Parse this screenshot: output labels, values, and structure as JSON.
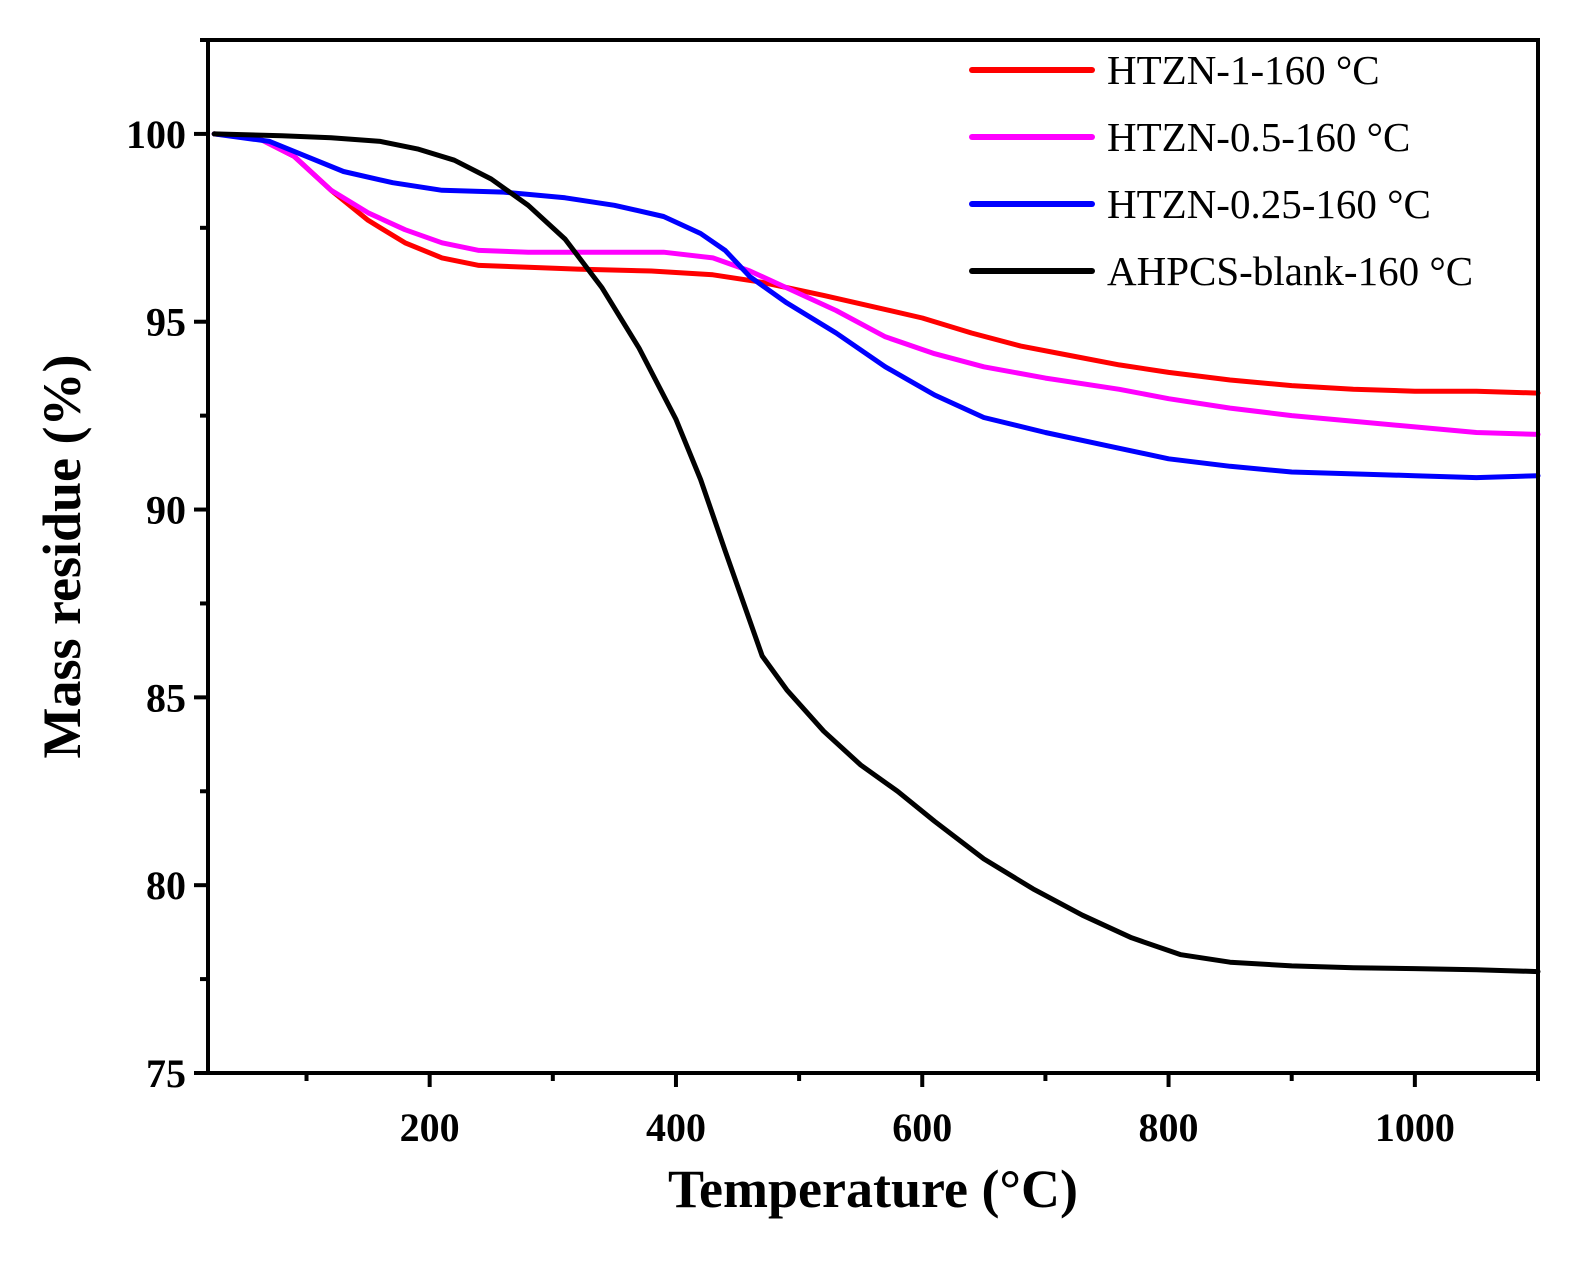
{
  "chart_data": {
    "type": "line",
    "title": "",
    "xlabel": "Temperature (°C)",
    "ylabel": "Mass residue (%)",
    "xlim": [
      20,
      1100
    ],
    "ylim": [
      75,
      102.5
    ],
    "x_ticks": [
      200,
      400,
      600,
      800,
      1000
    ],
    "y_ticks": [
      75,
      80,
      85,
      90,
      95,
      100
    ],
    "x_tick_labels": [
      "200",
      "400",
      "600",
      "800",
      "1000"
    ],
    "y_tick_labels": [
      "75",
      "80",
      "85",
      "90",
      "95",
      "100"
    ],
    "legend_position": "top-right",
    "series": [
      {
        "name": "HTZN-1-160 °C",
        "color": "#ff0000",
        "points": [
          [
            25,
            100
          ],
          [
            60,
            99.9
          ],
          [
            90,
            99.4
          ],
          [
            120,
            98.5
          ],
          [
            150,
            97.7
          ],
          [
            180,
            97.1
          ],
          [
            210,
            96.7
          ],
          [
            240,
            96.5
          ],
          [
            280,
            96.45
          ],
          [
            320,
            96.4
          ],
          [
            380,
            96.35
          ],
          [
            430,
            96.25
          ],
          [
            470,
            96.05
          ],
          [
            520,
            95.7
          ],
          [
            560,
            95.4
          ],
          [
            600,
            95.1
          ],
          [
            640,
            94.7
          ],
          [
            680,
            94.35
          ],
          [
            720,
            94.1
          ],
          [
            760,
            93.85
          ],
          [
            800,
            93.65
          ],
          [
            850,
            93.45
          ],
          [
            900,
            93.3
          ],
          [
            950,
            93.2
          ],
          [
            1000,
            93.15
          ],
          [
            1050,
            93.15
          ],
          [
            1100,
            93.1
          ]
        ]
      },
      {
        "name": "HTZN-0.5-160 °C",
        "color": "#ff00ff",
        "points": [
          [
            25,
            100
          ],
          [
            60,
            99.9
          ],
          [
            90,
            99.4
          ],
          [
            120,
            98.5
          ],
          [
            150,
            97.9
          ],
          [
            180,
            97.45
          ],
          [
            210,
            97.1
          ],
          [
            240,
            96.9
          ],
          [
            280,
            96.85
          ],
          [
            340,
            96.85
          ],
          [
            390,
            96.85
          ],
          [
            430,
            96.7
          ],
          [
            460,
            96.35
          ],
          [
            490,
            95.9
          ],
          [
            530,
            95.3
          ],
          [
            570,
            94.6
          ],
          [
            610,
            94.15
          ],
          [
            650,
            93.8
          ],
          [
            700,
            93.5
          ],
          [
            760,
            93.2
          ],
          [
            800,
            92.95
          ],
          [
            850,
            92.7
          ],
          [
            900,
            92.5
          ],
          [
            950,
            92.35
          ],
          [
            1000,
            92.2
          ],
          [
            1050,
            92.05
          ],
          [
            1100,
            92.0
          ]
        ]
      },
      {
        "name": "HTZN-0.25-160 °C",
        "color": "#0000ff",
        "points": [
          [
            25,
            100
          ],
          [
            70,
            99.8
          ],
          [
            100,
            99.4
          ],
          [
            130,
            99.0
          ],
          [
            170,
            98.7
          ],
          [
            210,
            98.5
          ],
          [
            260,
            98.45
          ],
          [
            310,
            98.3
          ],
          [
            350,
            98.1
          ],
          [
            390,
            97.8
          ],
          [
            420,
            97.35
          ],
          [
            440,
            96.9
          ],
          [
            460,
            96.2
          ],
          [
            490,
            95.5
          ],
          [
            530,
            94.7
          ],
          [
            570,
            93.8
          ],
          [
            610,
            93.05
          ],
          [
            650,
            92.45
          ],
          [
            700,
            92.05
          ],
          [
            750,
            91.7
          ],
          [
            800,
            91.35
          ],
          [
            850,
            91.15
          ],
          [
            900,
            91.0
          ],
          [
            950,
            90.95
          ],
          [
            1000,
            90.9
          ],
          [
            1050,
            90.85
          ],
          [
            1100,
            90.9
          ]
        ]
      },
      {
        "name": "AHPCS-blank-160 °C",
        "color": "#000000",
        "points": [
          [
            25,
            100
          ],
          [
            80,
            99.95
          ],
          [
            120,
            99.9
          ],
          [
            160,
            99.8
          ],
          [
            190,
            99.6
          ],
          [
            220,
            99.3
          ],
          [
            250,
            98.8
          ],
          [
            280,
            98.1
          ],
          [
            310,
            97.2
          ],
          [
            340,
            95.9
          ],
          [
            370,
            94.3
          ],
          [
            400,
            92.4
          ],
          [
            420,
            90.8
          ],
          [
            440,
            88.9
          ],
          [
            455,
            87.5
          ],
          [
            470,
            86.1
          ],
          [
            490,
            85.2
          ],
          [
            520,
            84.1
          ],
          [
            550,
            83.2
          ],
          [
            580,
            82.5
          ],
          [
            610,
            81.7
          ],
          [
            650,
            80.7
          ],
          [
            690,
            79.9
          ],
          [
            730,
            79.2
          ],
          [
            770,
            78.6
          ],
          [
            810,
            78.15
          ],
          [
            850,
            77.95
          ],
          [
            900,
            77.85
          ],
          [
            950,
            77.8
          ],
          [
            1000,
            77.78
          ],
          [
            1050,
            77.75
          ],
          [
            1100,
            77.7
          ]
        ]
      }
    ]
  }
}
